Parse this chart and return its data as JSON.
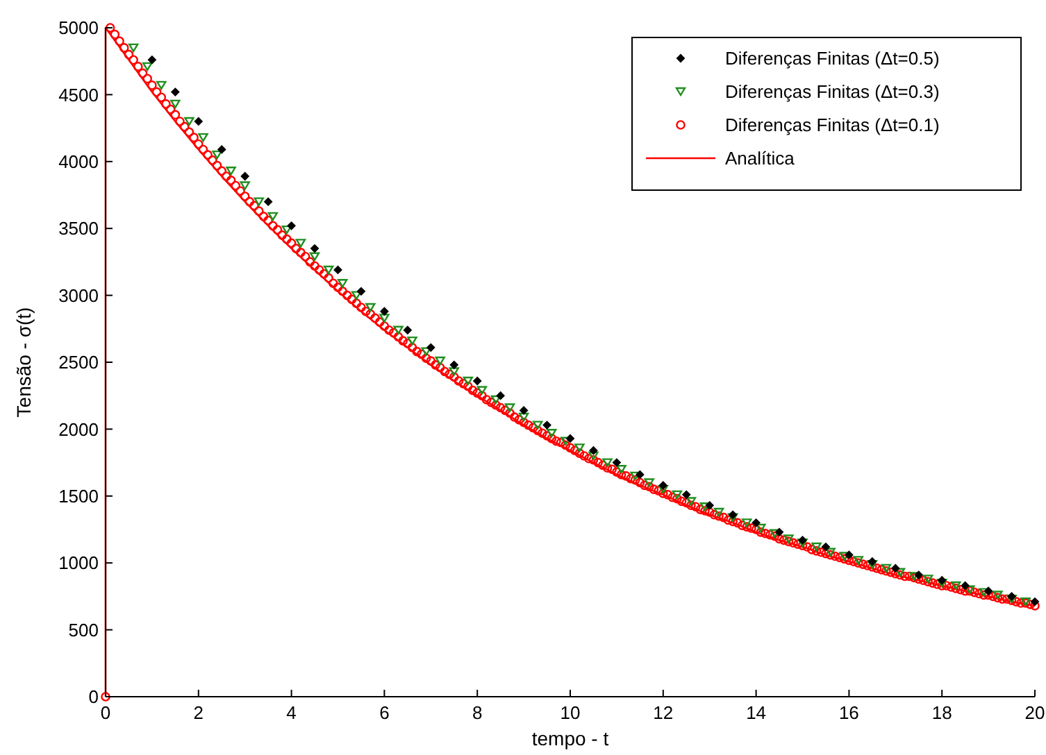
{
  "chart_data": {
    "type": "scatter",
    "xlabel": "tempo - t",
    "ylabel": "Tensão - σ(t)",
    "xlim": [
      0,
      20
    ],
    "ylim": [
      0,
      5000
    ],
    "xticks": [
      0,
      2,
      4,
      6,
      8,
      10,
      12,
      14,
      16,
      18,
      20
    ],
    "yticks": [
      0,
      500,
      1000,
      1500,
      2000,
      2500,
      3000,
      3500,
      4000,
      4500,
      5000
    ],
    "grid": false,
    "legend": "top right",
    "series": [
      {
        "name": "Diferenças Finitas (Δt=0.5)",
        "type": "scatter",
        "marker": "diamond",
        "color": "#000000",
        "x": [
          1,
          1.5,
          2,
          2.5,
          3,
          3.5,
          4,
          4.5,
          5,
          5.5,
          6,
          6.5,
          7,
          7.5,
          8,
          8.5,
          9,
          9.5,
          10,
          10.5,
          11,
          11.5,
          12,
          12.5,
          13,
          13.5,
          14,
          14.5,
          15,
          15.5,
          16,
          16.5,
          17,
          17.5,
          18,
          18.5,
          19,
          19.5,
          20
        ],
        "values": [
          4760,
          4520,
          4300,
          4090,
          3890,
          3700,
          3520,
          3350,
          3190,
          3030,
          2880,
          2740,
          2610,
          2480,
          2360,
          2250,
          2140,
          2030,
          1930,
          1840,
          1750,
          1660,
          1580,
          1510,
          1430,
          1360,
          1300,
          1230,
          1170,
          1120,
          1060,
          1010,
          960,
          910,
          870,
          830,
          790,
          750,
          710
        ]
      },
      {
        "name": "Diferenças Finitas (Δt=0.3)",
        "type": "scatter",
        "marker": "triangle",
        "color": "#1f8f1f",
        "x": [
          0.6,
          0.9,
          1.2,
          1.5,
          1.8,
          2.1,
          2.4,
          2.7,
          3,
          3.3,
          3.6,
          3.9,
          4.2,
          4.5,
          4.8,
          5.1,
          5.4,
          5.7,
          6,
          6.3,
          6.6,
          6.9,
          7.2,
          7.5,
          7.8,
          8.1,
          8.4,
          8.7,
          9,
          9.3,
          9.6,
          9.9,
          10.2,
          10.5,
          10.8,
          11.1,
          11.4,
          11.7,
          12,
          12.3,
          12.6,
          12.9,
          13.2,
          13.5,
          13.8,
          14.1,
          14.4,
          14.7,
          15,
          15.3,
          15.6,
          15.9,
          16.2,
          16.5,
          16.8,
          17.1,
          17.4,
          17.7,
          18,
          18.3,
          18.6,
          18.9,
          19.2,
          19.5,
          19.8
        ],
        "values": [
          4850,
          4710,
          4570,
          4430,
          4300,
          4180,
          4050,
          3930,
          3820,
          3700,
          3590,
          3490,
          3390,
          3290,
          3190,
          3090,
          3000,
          2910,
          2830,
          2740,
          2660,
          2580,
          2510,
          2430,
          2360,
          2290,
          2220,
          2160,
          2090,
          2030,
          1970,
          1910,
          1860,
          1800,
          1750,
          1700,
          1650,
          1600,
          1550,
          1510,
          1460,
          1420,
          1380,
          1340,
          1300,
          1260,
          1220,
          1180,
          1150,
          1120,
          1080,
          1050,
          1020,
          990,
          960,
          930,
          900,
          880,
          850,
          830,
          800,
          780,
          760,
          730,
          710
        ]
      },
      {
        "name": "Diferenças Finitas (Δt=0.1)",
        "type": "scatter",
        "marker": "circle",
        "color": "#ff0000",
        "x": [
          0,
          0.1,
          0.2,
          0.3,
          0.4,
          0.5,
          0.6,
          0.7,
          0.8,
          0.9,
          1,
          1.1,
          1.2,
          1.3,
          1.4,
          1.5,
          1.6,
          1.7,
          1.8,
          1.9,
          2,
          2.1,
          2.2,
          2.3,
          2.4,
          2.5,
          2.6,
          2.7,
          2.8,
          2.9,
          3,
          3.1,
          3.2,
          3.3,
          3.4,
          3.5,
          3.6,
          3.7,
          3.8,
          3.9,
          4,
          4.1,
          4.2,
          4.3,
          4.4,
          4.5,
          4.6,
          4.7,
          4.8,
          4.9,
          5,
          5.1,
          5.2,
          5.3,
          5.4,
          5.5,
          5.6,
          5.7,
          5.8,
          5.9,
          6,
          6.1,
          6.2,
          6.3,
          6.4,
          6.5,
          6.6,
          6.7,
          6.8,
          6.9,
          7,
          7.1,
          7.2,
          7.3,
          7.4,
          7.5,
          7.6,
          7.7,
          7.8,
          7.9,
          8,
          8.1,
          8.2,
          8.3,
          8.4,
          8.5,
          8.6,
          8.7,
          8.8,
          8.9,
          9,
          9.1,
          9.2,
          9.3,
          9.4,
          9.5,
          9.6,
          9.7,
          9.8,
          9.9,
          10,
          10.1,
          10.2,
          10.3,
          10.4,
          10.5,
          10.6,
          10.7,
          10.8,
          10.9,
          11,
          11.1,
          11.2,
          11.3,
          11.4,
          11.5,
          11.6,
          11.7,
          11.8,
          11.9,
          12,
          12.1,
          12.2,
          12.3,
          12.4,
          12.5,
          12.6,
          12.7,
          12.8,
          12.9,
          13,
          13.1,
          13.2,
          13.3,
          13.4,
          13.5,
          13.6,
          13.7,
          13.8,
          13.9,
          14,
          14.1,
          14.2,
          14.3,
          14.4,
          14.5,
          14.6,
          14.7,
          14.8,
          14.9,
          15,
          15.1,
          15.2,
          15.3,
          15.4,
          15.5,
          15.6,
          15.7,
          15.8,
          15.9,
          16,
          16.1,
          16.2,
          16.3,
          16.4,
          16.5,
          16.6,
          16.7,
          16.8,
          16.9,
          17,
          17.1,
          17.2,
          17.3,
          17.4,
          17.5,
          17.6,
          17.7,
          17.8,
          17.9,
          18,
          18.1,
          18.2,
          18.3,
          18.4,
          18.5,
          18.6,
          18.7,
          18.8,
          18.9,
          19,
          19.1,
          19.2,
          19.3,
          19.4,
          19.5,
          19.6,
          19.7,
          19.8,
          19.9,
          20
        ],
        "values": [
          0,
          5000,
          4950,
          4900,
          4850,
          4800,
          4760,
          4710,
          4660,
          4620,
          4570,
          4520,
          4480,
          4430,
          4390,
          4350,
          4300,
          4260,
          4220,
          4180,
          4130,
          4090,
          4050,
          4010,
          3970,
          3930,
          3890,
          3860,
          3820,
          3780,
          3740,
          3700,
          3670,
          3630,
          3590,
          3560,
          3520,
          3490,
          3450,
          3420,
          3390,
          3350,
          3320,
          3290,
          3250,
          3220,
          3190,
          3160,
          3130,
          3090,
          3060,
          3030,
          3000,
          2970,
          2940,
          2910,
          2880,
          2860,
          2830,
          2800,
          2770,
          2740,
          2720,
          2690,
          2660,
          2640,
          2610,
          2580,
          2560,
          2530,
          2510,
          2480,
          2460,
          2430,
          2410,
          2390,
          2360,
          2340,
          2320,
          2290,
          2270,
          2250,
          2220,
          2200,
          2180,
          2160,
          2140,
          2120,
          2090,
          2070,
          2050,
          2030,
          2010,
          1990,
          1970,
          1950,
          1930,
          1910,
          1900,
          1880,
          1860,
          1840,
          1820,
          1800,
          1780,
          1770,
          1750,
          1730,
          1710,
          1700,
          1680,
          1660,
          1650,
          1630,
          1620,
          1600,
          1580,
          1570,
          1550,
          1540,
          1520,
          1510,
          1490,
          1480,
          1460,
          1450,
          1430,
          1420,
          1400,
          1390,
          1380,
          1360,
          1350,
          1340,
          1320,
          1310,
          1300,
          1280,
          1270,
          1260,
          1250,
          1230,
          1220,
          1210,
          1200,
          1180,
          1170,
          1160,
          1150,
          1140,
          1130,
          1120,
          1100,
          1090,
          1080,
          1070,
          1060,
          1050,
          1040,
          1030,
          1020,
          1010,
          1000,
          990,
          980,
          970,
          960,
          950,
          940,
          930,
          920,
          910,
          900,
          900,
          890,
          880,
          870,
          860,
          850,
          840,
          830,
          830,
          820,
          810,
          800,
          790,
          790,
          780,
          770,
          760,
          760,
          750,
          740,
          730,
          730,
          720,
          710,
          700,
          700,
          690,
          680
        ]
      },
      {
        "name": "Analítica",
        "type": "line",
        "marker": "none",
        "line_style": "solid",
        "color": "#ff0000",
        "x": [
          0,
          0,
          0.5,
          1,
          1.5,
          2,
          2.5,
          3,
          3.5,
          4,
          4.5,
          5,
          5.5,
          6,
          6.5,
          7,
          7.5,
          8,
          8.5,
          9,
          9.5,
          10,
          10.5,
          11,
          11.5,
          12,
          12.5,
          13,
          13.5,
          14,
          14.5,
          15,
          15.5,
          16,
          16.5,
          17,
          17.5,
          18,
          18.5,
          19,
          19.5,
          20
        ],
        "values": [
          0,
          5000,
          4760,
          4520,
          4300,
          4090,
          3890,
          3700,
          3520,
          3350,
          3190,
          3030,
          2880,
          2740,
          2610,
          2480,
          2360,
          2250,
          2140,
          2030,
          1930,
          1840,
          1750,
          1660,
          1580,
          1510,
          1430,
          1360,
          1300,
          1230,
          1170,
          1120,
          1060,
          1010,
          960,
          910,
          870,
          830,
          790,
          750,
          710,
          680
        ]
      }
    ]
  }
}
